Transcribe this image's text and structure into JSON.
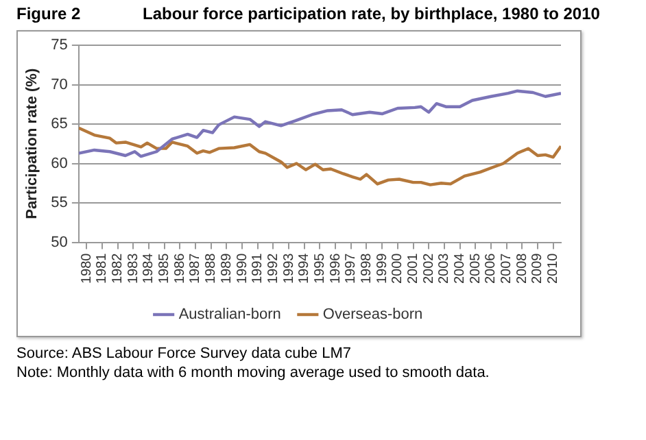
{
  "chart_data": {
    "type": "line",
    "title": "Labour force participation rate, by birthplace, 1980 to 2010",
    "ylabel": "Participation rate (%)",
    "annotations": [
      "Figure 2",
      "Source: ABS Labour Force Survey data cube LM7",
      "Note: Monthly data with 6 month moving average used to smooth data."
    ],
    "xlim": [
      1980,
      2011
    ],
    "xticks": [
      {
        "value": 1980.5,
        "label": "1980"
      },
      {
        "value": 1981.5,
        "label": "1981"
      },
      {
        "value": 1982.5,
        "label": "1982"
      },
      {
        "value": 1983.5,
        "label": "1983"
      },
      {
        "value": 1984.5,
        "label": "1984"
      },
      {
        "value": 1985.5,
        "label": "1985"
      },
      {
        "value": 1986.5,
        "label": "1986"
      },
      {
        "value": 1987.5,
        "label": "1987"
      },
      {
        "value": 1988.5,
        "label": "1988"
      },
      {
        "value": 1989.5,
        "label": "1989"
      },
      {
        "value": 1990.5,
        "label": "1990"
      },
      {
        "value": 1991.5,
        "label": "1991"
      },
      {
        "value": 1992.5,
        "label": "1992"
      },
      {
        "value": 1993.5,
        "label": "1993"
      },
      {
        "value": 1994.5,
        "label": "1994"
      },
      {
        "value": 1995.5,
        "label": "1995"
      },
      {
        "value": 1996.5,
        "label": "1996"
      },
      {
        "value": 1997.5,
        "label": "1997"
      },
      {
        "value": 1998.5,
        "label": "1998"
      },
      {
        "value": 1999.5,
        "label": "1999"
      },
      {
        "value": 2000.5,
        "label": "2000"
      },
      {
        "value": 2001.5,
        "label": "2001"
      },
      {
        "value": 2002.5,
        "label": "2002"
      },
      {
        "value": 2003.5,
        "label": "2003"
      },
      {
        "value": 2004.5,
        "label": "2004"
      },
      {
        "value": 2005.5,
        "label": "2005"
      },
      {
        "value": 2006.5,
        "label": "2006"
      },
      {
        "value": 2007.5,
        "label": "2007"
      },
      {
        "value": 2008.5,
        "label": "2008"
      },
      {
        "value": 2009.5,
        "label": "2009"
      },
      {
        "value": 2010.5,
        "label": "2010"
      }
    ],
    "ylim": [
      50,
      75
    ],
    "yticks": [
      50,
      55,
      60,
      65,
      70,
      75
    ],
    "grid": "y",
    "legend": "bottom",
    "marker": "none",
    "line_style": "solid",
    "series": [
      {
        "name": "Australian-born",
        "color": "#7b74b8",
        "x": [
          1980.0,
          1981.0,
          1982.0,
          1983.0,
          1983.6,
          1984.0,
          1985.0,
          1986.0,
          1987.0,
          1987.6,
          1988.0,
          1988.6,
          1989.0,
          1990.0,
          1991.0,
          1991.6,
          1992.0,
          1993.0,
          1993.9,
          1995.0,
          1996.0,
          1996.9,
          1997.6,
          1998.7,
          1999.5,
          2000.5,
          2001.6,
          2002.0,
          2002.5,
          2003.0,
          2003.6,
          2004.5,
          2005.3,
          2006.5,
          2007.6,
          2008.2,
          2009.2,
          2010.0,
          2011.0
        ],
        "values": [
          61.3,
          61.7,
          61.5,
          61.0,
          61.5,
          60.9,
          61.5,
          63.1,
          63.7,
          63.3,
          64.2,
          63.9,
          64.9,
          65.9,
          65.6,
          64.7,
          65.3,
          64.8,
          65.4,
          66.2,
          66.7,
          66.8,
          66.2,
          66.5,
          66.3,
          67.0,
          67.1,
          67.2,
          66.5,
          67.6,
          67.2,
          67.2,
          68.0,
          68.5,
          68.9,
          69.2,
          69.0,
          68.5,
          68.9
        ]
      },
      {
        "name": "Overseas-born",
        "color": "#b5783a",
        "x": [
          1980.0,
          1981.0,
          1982.0,
          1982.4,
          1983.0,
          1984.0,
          1984.4,
          1985.0,
          1985.6,
          1986.0,
          1987.0,
          1987.6,
          1988.0,
          1988.4,
          1989.0,
          1990.0,
          1991.0,
          1991.6,
          1992.0,
          1993.0,
          1993.4,
          1994.0,
          1994.6,
          1995.2,
          1995.7,
          1996.2,
          1997.0,
          1997.6,
          1998.1,
          1998.5,
          1999.2,
          1999.9,
          2000.6,
          2001.5,
          2002.0,
          2002.6,
          2003.3,
          2003.9,
          2004.8,
          2005.8,
          2006.6,
          2007.3,
          2008.2,
          2008.9,
          2009.5,
          2010.0,
          2010.5,
          2011.0
        ],
        "values": [
          64.5,
          63.6,
          63.2,
          62.6,
          62.7,
          62.1,
          62.6,
          61.9,
          61.9,
          62.7,
          62.2,
          61.3,
          61.6,
          61.4,
          61.9,
          62.0,
          62.4,
          61.5,
          61.3,
          60.2,
          59.5,
          60.0,
          59.2,
          59.9,
          59.2,
          59.3,
          58.7,
          58.3,
          58.0,
          58.6,
          57.4,
          57.9,
          58.0,
          57.6,
          57.6,
          57.3,
          57.5,
          57.4,
          58.4,
          58.9,
          59.5,
          60.0,
          61.3,
          61.9,
          61.0,
          61.1,
          60.8,
          62.2
        ]
      }
    ]
  }
}
